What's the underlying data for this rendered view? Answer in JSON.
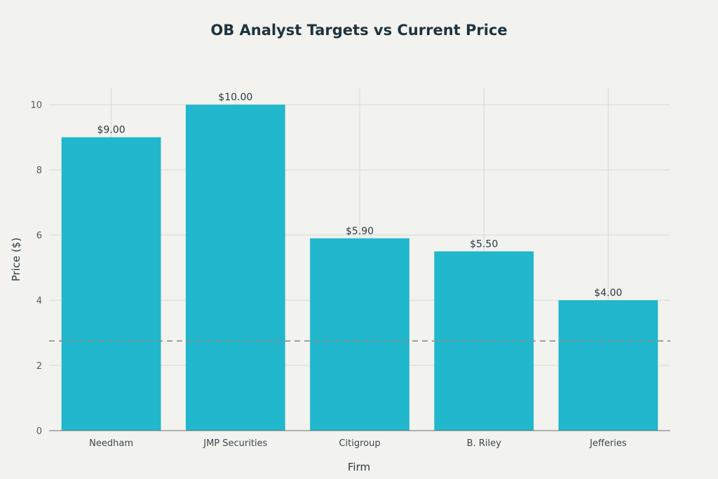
{
  "chart_data": {
    "type": "bar",
    "title": "OB Analyst Targets vs Current Price",
    "xlabel": "Firm",
    "ylabel": "Price ($)",
    "categories": [
      "Needham",
      "JMP Securities",
      "Citigroup",
      "B. Riley",
      "Jefferies"
    ],
    "values": [
      9.0,
      10.0,
      5.9,
      5.5,
      4.0
    ],
    "data_labels": [
      "$9.00",
      "$10.00",
      "$5.90",
      "$5.50",
      "$4.00"
    ],
    "ylim": [
      0,
      10.5
    ],
    "yticks": [
      0,
      2,
      4,
      6,
      8,
      10
    ],
    "ytick_labels": [
      "0",
      "2",
      "4",
      "6",
      "8",
      "10"
    ],
    "grid": true,
    "reference_line": {
      "value": 2.75,
      "style": "dashed"
    },
    "colors": {
      "bar": "#21b7cc",
      "reference_line": "#8a8d8f",
      "background": "#f2f2ee"
    }
  }
}
